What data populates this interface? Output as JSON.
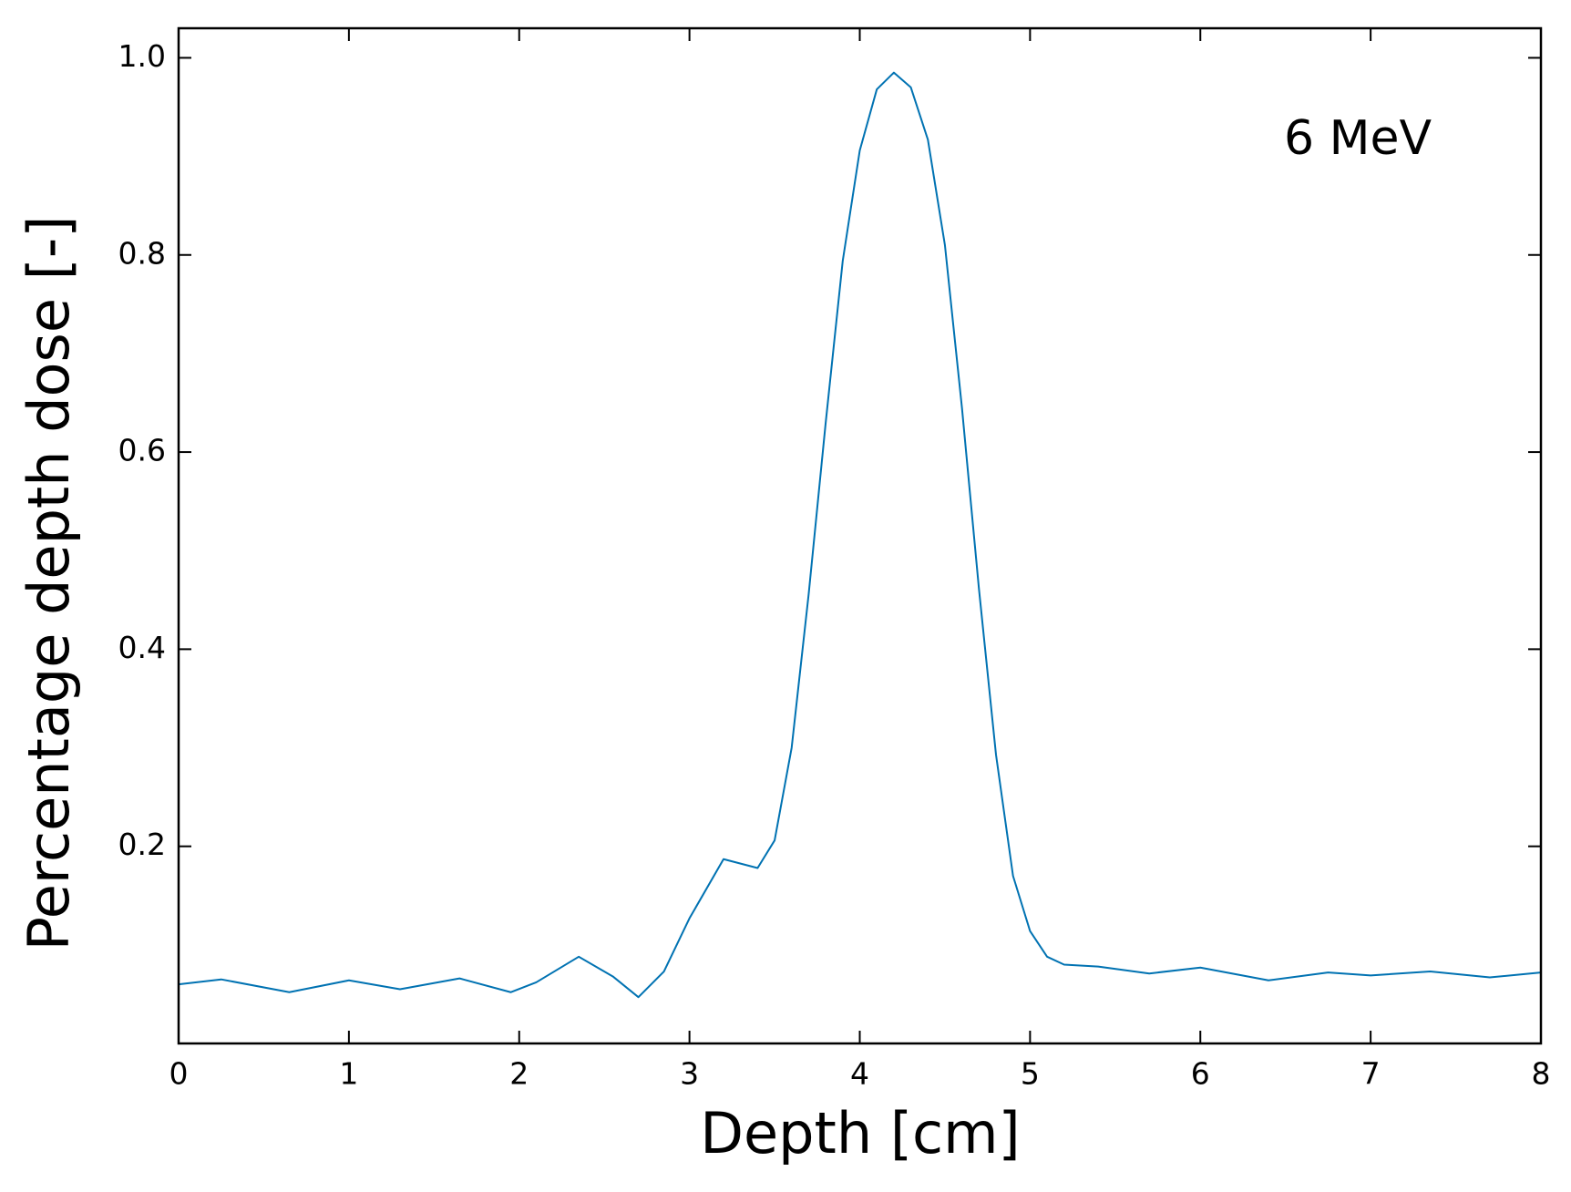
{
  "chart_data": {
    "type": "line",
    "annotation": "6 MeV",
    "x_label": "Depth [cm]",
    "y_label": "Percentage depth dose [-]",
    "x": [
      0,
      0.25,
      0.65,
      1.0,
      1.3,
      1.65,
      1.95,
      2.1,
      2.35,
      2.55,
      2.7,
      2.85,
      3.0,
      3.2,
      3.4,
      3.5,
      3.6,
      3.7,
      3.8,
      3.9,
      4.0,
      4.1,
      4.2,
      4.3,
      4.4,
      4.5,
      4.6,
      4.7,
      4.8,
      4.9,
      5.0,
      5.1,
      5.2,
      5.4,
      5.7,
      6.0,
      6.4,
      6.75,
      7.0,
      7.35,
      7.7,
      8.0
    ],
    "series": [
      {
        "color": "#0072b2",
        "values": [
          0.06,
          0.065,
          0.052,
          0.064,
          0.055,
          0.066,
          0.052,
          0.062,
          0.088,
          0.068,
          0.047,
          0.073,
          0.127,
          0.187,
          0.178,
          0.206,
          0.3,
          0.456,
          0.63,
          0.794,
          0.906,
          0.968,
          0.985,
          0.97,
          0.917,
          0.81,
          0.645,
          0.461,
          0.293,
          0.17,
          0.114,
          0.088,
          0.08,
          0.078,
          0.071,
          0.077,
          0.064,
          0.072,
          0.069,
          0.073,
          0.067,
          0.072
        ]
      }
    ],
    "xlim": [
      0,
      8
    ],
    "xticks": [
      0,
      1,
      2,
      3,
      4,
      5,
      6,
      7,
      8
    ],
    "ylim": [
      0,
      1.03
    ],
    "yticks": [
      0.2,
      0.4,
      0.6,
      0.8,
      {
        "value": 1,
        "label": "1.0"
      }
    ]
  }
}
